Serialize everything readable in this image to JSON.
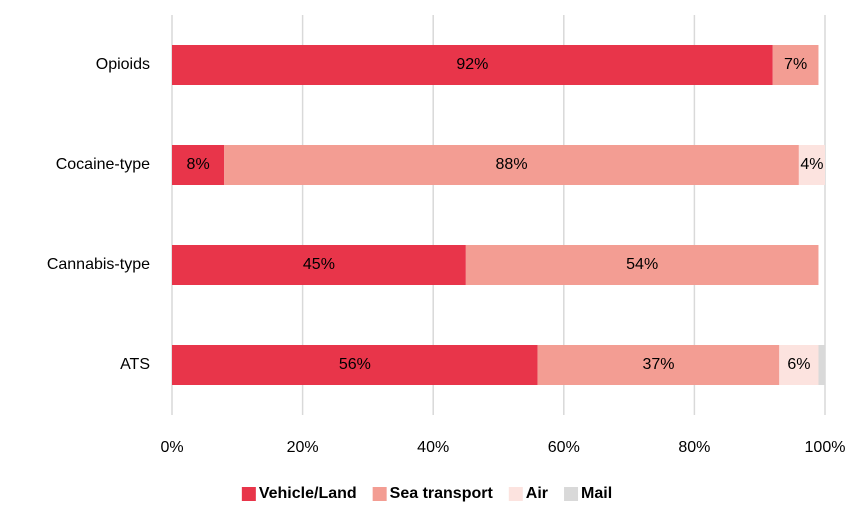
{
  "chart_data": {
    "type": "stacked_barh",
    "categories": [
      "Opioids",
      "Cocaine-type",
      "Cannabis-type",
      "ATS"
    ],
    "series": [
      {
        "name": "Vehicle/Land",
        "color": "#e8354a",
        "values": [
          92,
          8,
          45,
          56
        ],
        "value_labels": [
          "92%",
          "8%",
          "45%",
          "56%"
        ]
      },
      {
        "name": "Sea transport",
        "color": "#f39d93",
        "values": [
          7,
          88,
          54,
          37
        ],
        "value_labels": [
          "7%",
          "88%",
          "54%",
          "37%"
        ]
      },
      {
        "name": "Air",
        "color": "#fce3df",
        "values": [
          0,
          4,
          0,
          6
        ],
        "value_labels": [
          null,
          "4%",
          null,
          "6%"
        ]
      },
      {
        "name": "Mail",
        "color": "#d9d9d9",
        "values": [
          0,
          0,
          0,
          1
        ],
        "value_labels": [
          null,
          null,
          null,
          null
        ]
      }
    ],
    "xlim": [
      0,
      100
    ],
    "xticks": [
      {
        "value": 0,
        "label": "0%"
      },
      {
        "value": 20,
        "label": "20%"
      },
      {
        "value": 40,
        "label": "40%"
      },
      {
        "value": 60,
        "label": "60%"
      },
      {
        "value": 80,
        "label": "80%"
      },
      {
        "value": 100,
        "label": "100%"
      }
    ],
    "grid": true,
    "legend": "bottom"
  }
}
